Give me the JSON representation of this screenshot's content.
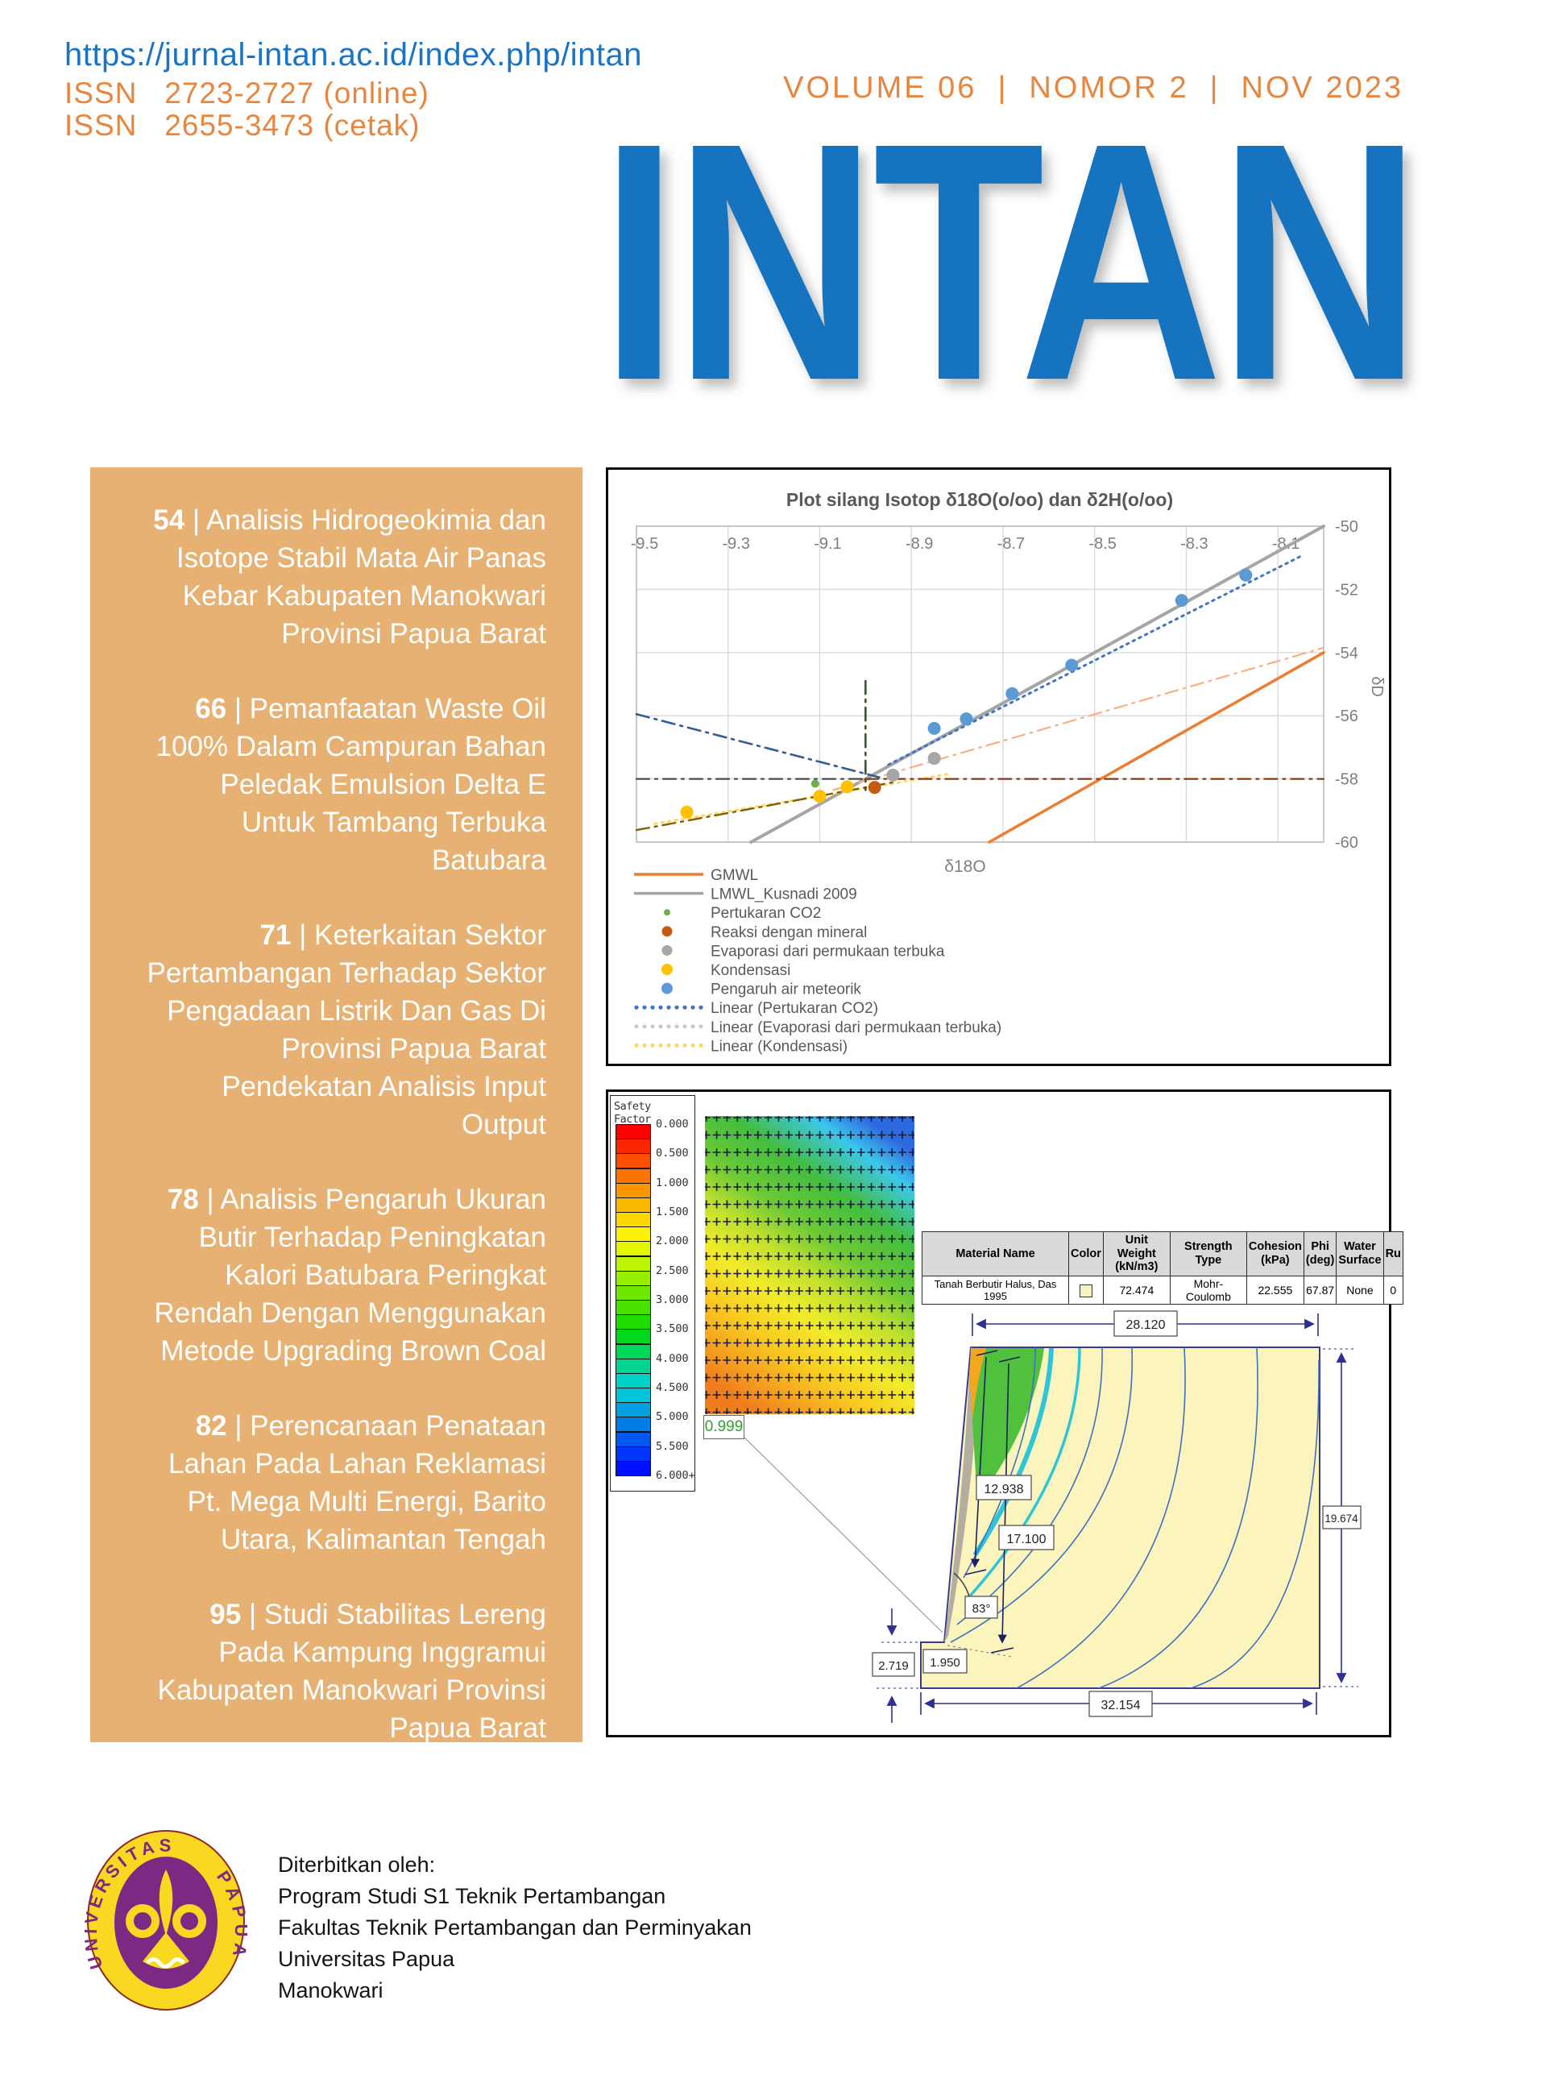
{
  "header": {
    "url": "https://jurnal-intan.ac.id/index.php/intan",
    "issn_online": "ISSN   2723-2727 (online)",
    "issn_print": "ISSN   2655-3473 (cetak)",
    "volume": "VOLUME 06",
    "nomor": "NOMOR 2",
    "date": "NOV 2023",
    "separator": "|",
    "journal_title": "INTAN"
  },
  "colors": {
    "brand_blue": "#1673c0",
    "accent_orange": "#e8853e",
    "sidebar_bg": "#e6b172",
    "title_gray": "#595959"
  },
  "sidebar": {
    "articles": [
      {
        "page": "54",
        "title": "Analisis Hidrogeokimia dan Isotope Stabil Mata Air Panas Kebar Kabupaten Manokwari Provinsi Papua Barat"
      },
      {
        "page": "66",
        "title": "Pemanfaatan Waste Oil 100% Dalam Campuran Bahan Peledak Emulsion Delta E Untuk Tambang Terbuka Batubara"
      },
      {
        "page": "71",
        "title": "Keterkaitan Sektor Pertambangan Terhadap Sektor Pengadaan Listrik Dan Gas Di Provinsi Papua Barat Pendekatan Analisis Input Output"
      },
      {
        "page": "78",
        "title": "Analisis Pengaruh Ukuran Butir Terhadap Peningkatan Kalori Batubara Peringkat Rendah Dengan Menggunakan Metode Upgrading Brown Coal"
      },
      {
        "page": "82",
        "title": "Perencanaan Penataan Lahan Pada Lahan Reklamasi Pt. Mega Multi Energi, Barito Utara, Kalimantan Tengah"
      },
      {
        "page": "95",
        "title": "Studi Stabilitas Lereng Pada Kampung Inggramui Kabupaten Manokwari Provinsi Papua Barat"
      }
    ]
  },
  "chart_data": [
    {
      "type": "scatter",
      "title": "Plot silang Isotop δ18O(o/oo) dan δ2H(o/oo)",
      "xlabel": "δ18O",
      "ylabel": "δD",
      "xlim": [
        -9.5,
        -8.0
      ],
      "ylim": [
        -60,
        -50
      ],
      "xticks": [
        -9.5,
        -9.3,
        -9.1,
        -8.9,
        -8.7,
        -8.5,
        -8.3,
        -8.1
      ],
      "yticks": [
        -50,
        -52,
        -54,
        -56,
        -58,
        -60
      ],
      "grid": true,
      "legend_position": "bottom-left",
      "series": [
        {
          "name": "Pertukaran CO2",
          "color": "#70ad47",
          "size": 5,
          "points": [
            [
              -9.11,
              -58.15
            ]
          ]
        },
        {
          "name": "Reaksi dengan mineral",
          "color": "#c55a11",
          "size": 8,
          "points": [
            [
              -8.98,
              -58.27
            ]
          ]
        },
        {
          "name": "Evaporasi dari permukaan terbuka",
          "color": "#a6a6a6",
          "size": 8,
          "points": [
            [
              -8.94,
              -57.88
            ],
            [
              -8.85,
              -57.35
            ]
          ]
        },
        {
          "name": "Kondensasi",
          "color": "#ffc000",
          "size": 8,
          "points": [
            [
              -9.39,
              -59.05
            ],
            [
              -9.1,
              -58.55
            ],
            [
              -9.04,
              -58.25
            ]
          ]
        },
        {
          "name": "Pengaruh air meteorik",
          "color": "#5b9bd5",
          "size": 8,
          "points": [
            [
              -8.85,
              -56.4
            ],
            [
              -8.78,
              -56.1
            ],
            [
              -8.68,
              -55.3
            ],
            [
              -8.55,
              -54.4
            ],
            [
              -8.31,
              -52.35
            ],
            [
              -8.17,
              -51.55
            ]
          ]
        }
      ],
      "lines": [
        {
          "name": "GMWL",
          "color": "#ed7d31",
          "style": "solid",
          "width": 3.5,
          "from": [
            -8.73,
            -60
          ],
          "to": [
            -8.0,
            -54.0
          ]
        },
        {
          "name": "LMWL_Kusnadi 2009",
          "color": "#a5a5a5",
          "style": "solid",
          "width": 4,
          "from": [
            -9.25,
            -60
          ],
          "to": [
            -8.0,
            -50.0
          ]
        },
        {
          "name": "Linear (Pertukaran CO2)",
          "color": "#4472c4",
          "style": "dotted",
          "width": 3,
          "from": [
            -8.95,
            -57.55
          ],
          "to": [
            -8.05,
            -50.95
          ]
        },
        {
          "name": "Linear (Evaporasi dari permukaan terbuka)",
          "color": "#f4b183",
          "style": "dashdot",
          "width": 2.2,
          "from": [
            -9.07,
            -58.35
          ],
          "to": [
            -8.0,
            -53.85
          ]
        },
        {
          "name": "Linear (Kondensasi)",
          "color": "#ffd966",
          "style": "dotted",
          "width": 3,
          "from": [
            -9.46,
            -59.42
          ],
          "to": [
            -8.82,
            -57.85
          ]
        },
        {
          "name": "trend-kondensasi",
          "color": "#806000",
          "style": "dashdot",
          "width": 2.4,
          "from": [
            -9.5,
            -59.62
          ],
          "to": [
            -8.93,
            -58.08
          ]
        },
        {
          "name": "trend-meteorik",
          "color": "#2f5f8f",
          "style": "dashdot",
          "width": 2.6,
          "from": [
            -9.5,
            -55.95
          ],
          "to": [
            -8.97,
            -57.95
          ]
        },
        {
          "name": "marker-vertical",
          "color": "#385723",
          "style": "dashdot",
          "width": 2.6,
          "from": [
            -9.0,
            -54.9
          ],
          "to": [
            -9.0,
            -58.35
          ]
        },
        {
          "name": "marker-horizontal-left",
          "color": "#4a4a52",
          "style": "dashdot",
          "width": 2.2,
          "from": [
            -9.5,
            -58.0
          ],
          "to": [
            -9.0,
            -58.0
          ]
        },
        {
          "name": "marker-horizontal-right",
          "color": "#8b3a0f",
          "style": "dashdot",
          "width": 2.2,
          "from": [
            -9.0,
            -58.0
          ],
          "to": [
            -8.0,
            -58.0
          ]
        }
      ],
      "legend": [
        {
          "swatch": "line",
          "color": "#ed7d31",
          "label": "GMWL"
        },
        {
          "swatch": "line",
          "color": "#a5a5a5",
          "label": "LMWL_Kusnadi 2009"
        },
        {
          "swatch": "dot",
          "color": "#70ad47",
          "size": 4,
          "label": "Pertukaran CO2"
        },
        {
          "swatch": "dot",
          "color": "#c55a11",
          "size": 6.5,
          "label": "Reaksi dengan mineral"
        },
        {
          "swatch": "dot",
          "color": "#a6a6a6",
          "size": 6.5,
          "label": "Evaporasi dari permukaan terbuka"
        },
        {
          "swatch": "dot",
          "color": "#ffc000",
          "size": 7,
          "label": "Kondensasi"
        },
        {
          "swatch": "dot",
          "color": "#5b9bd5",
          "size": 7,
          "label": "Pengaruh air meteorik"
        },
        {
          "swatch": "dots",
          "color": "#4472c4",
          "label": "Linear (Pertukaran CO2)"
        },
        {
          "swatch": "dots",
          "color": "#c9c9c9",
          "label": "Linear (Evaporasi dari permukaan terbuka)"
        },
        {
          "swatch": "dots",
          "color": "#ffd966",
          "label": "Linear (Kondensasi)"
        }
      ]
    },
    {
      "type": "heatmap",
      "name": "slope-stability-model",
      "safety_factor_legend": {
        "title": "Safety Factor",
        "labels": [
          "0.000",
          "0.500",
          "1.000",
          "1.500",
          "2.000",
          "2.500",
          "3.000",
          "3.500",
          "4.000",
          "4.500",
          "5.000",
          "5.500",
          "6.000+"
        ],
        "ramp": [
          "#fe0000",
          "#fd2500",
          "#fc4f00",
          "#fb7300",
          "#fa9600",
          "#fbb800",
          "#fcd800",
          "#fdf200",
          "#e3f800",
          "#bdf400",
          "#97ee00",
          "#6fe800",
          "#47e200",
          "#1fdc00",
          "#00d81e",
          "#00d659",
          "#00d492",
          "#00d2c6",
          "#00c4d8",
          "#00a0e0",
          "#007ce8",
          "#0058f0",
          "#0034f8",
          "#0010ff"
        ]
      },
      "critical_value": "0.999",
      "material_table": {
        "headers": [
          "Material Name",
          "Color",
          "Unit Weight\n(kN/m3)",
          "Strength Type",
          "Cohesion\n(kPa)",
          "Phi\n(deg)",
          "Water\nSurface",
          "Ru"
        ],
        "rows": [
          {
            "material_name": "Tanah Berbutir Halus, Das 1995",
            "color": "#f5f3c2",
            "unit_weight": "72.474",
            "strength_type": "Mohr-Coulomb",
            "cohesion": "22.555",
            "phi": "67.87",
            "water_surface": "None",
            "ru": "0"
          }
        ]
      },
      "dimensions": {
        "top": "28.120",
        "right": "19.674",
        "bottom": "32.154",
        "left_step": "2.719",
        "base": "1.950",
        "slip1": "12.938",
        "slip2": "17.100",
        "slope_angle": "83°"
      }
    }
  ],
  "footer": {
    "lines": [
      "Diterbitkan oleh:",
      "Program Studi S1 Teknik Pertambangan",
      "Fakultas Teknik Pertambangan dan Perminyakan",
      "Universitas Papua",
      "Manokwari"
    ],
    "logo_text_left": "UNIVERSITAS",
    "logo_text_right": "PAPUA"
  }
}
